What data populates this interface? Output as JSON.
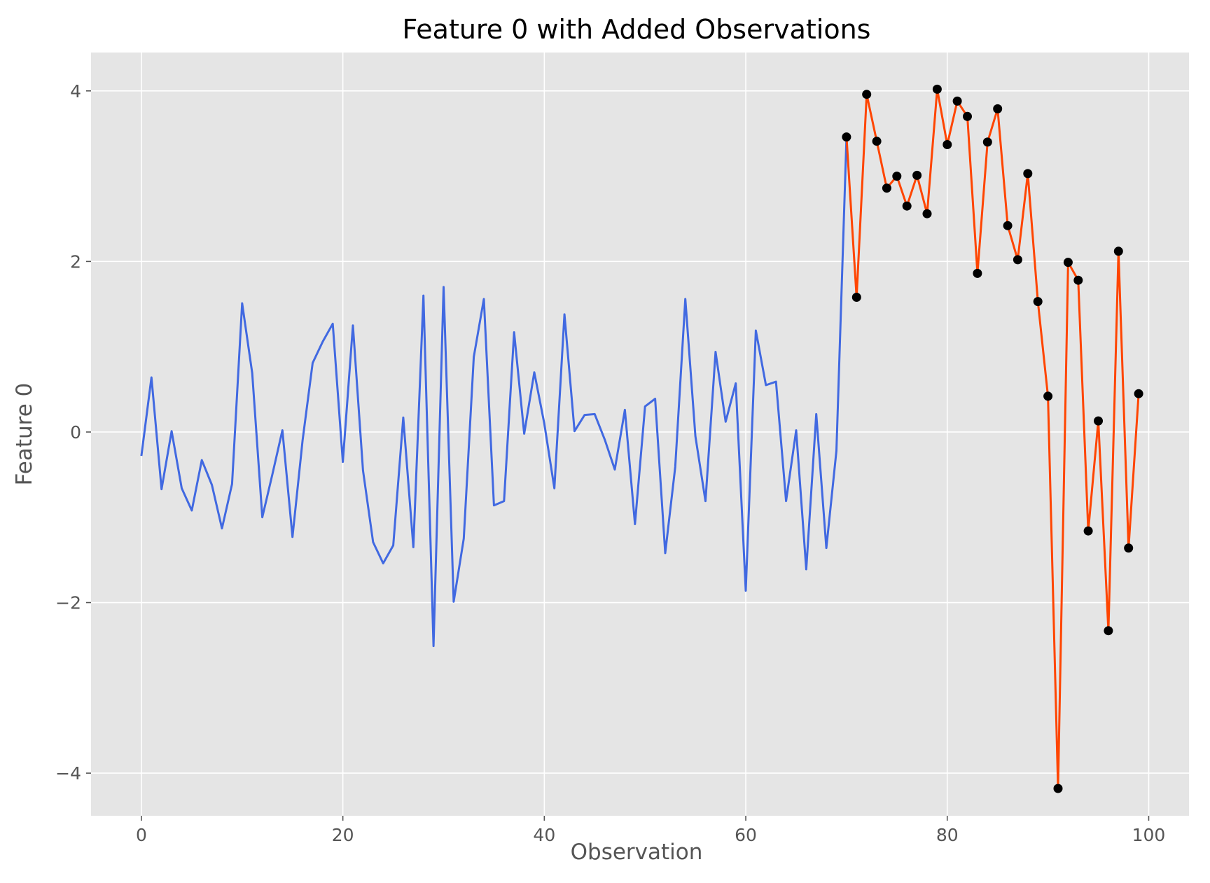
{
  "chart_data": {
    "type": "line",
    "title": "Feature 0 with Added Observations",
    "xlabel": "Observation",
    "ylabel": "Feature 0",
    "xlim": [
      -5,
      104
    ],
    "ylim": [
      -4.5,
      4.45
    ],
    "xticks": [
      0,
      20,
      40,
      60,
      80,
      100
    ],
    "xtick_labels": [
      "0",
      "20",
      "40",
      "60",
      "80",
      "100"
    ],
    "yticks": [
      -4,
      -2,
      0,
      2,
      4
    ],
    "ytick_labels": [
      "−4",
      "−2",
      "0",
      "2",
      "4"
    ],
    "grid": true,
    "style": "ggplot",
    "series": [
      {
        "color": "#4169e1",
        "markers": false,
        "x": [
          0,
          1,
          2,
          3,
          4,
          5,
          6,
          7,
          8,
          9,
          10,
          11,
          12,
          13,
          14,
          15,
          16,
          17,
          18,
          19,
          20,
          21,
          22,
          23,
          24,
          25,
          26,
          27,
          28,
          29,
          30,
          31,
          32,
          33,
          34,
          35,
          36,
          37,
          38,
          39,
          40,
          41,
          42,
          43,
          44,
          45,
          46,
          47,
          48,
          49,
          50,
          51,
          52,
          53,
          54,
          55,
          56,
          57,
          58,
          59,
          60,
          61,
          62,
          63,
          64,
          65,
          66,
          67,
          68,
          69,
          70
        ],
        "values": [
          -0.28,
          0.64,
          -0.67,
          0.01,
          -0.66,
          -0.92,
          -0.33,
          -0.62,
          -1.13,
          -0.61,
          1.51,
          0.69,
          -1.0,
          -0.5,
          0.02,
          -1.23,
          -0.1,
          0.81,
          1.06,
          1.27,
          -0.35,
          1.25,
          -0.45,
          -1.29,
          -1.54,
          -1.33,
          0.17,
          -1.35,
          1.6,
          -2.51,
          1.7,
          -1.99,
          -1.25,
          0.88,
          1.56,
          -0.86,
          -0.81,
          1.17,
          -0.02,
          0.7,
          0.1,
          -0.66,
          1.38,
          0.01,
          0.2,
          0.21,
          -0.09,
          -0.44,
          0.26,
          -1.08,
          0.3,
          0.39,
          -1.42,
          -0.41,
          1.56,
          -0.05,
          -0.81,
          0.94,
          0.12,
          0.57,
          -1.86,
          1.19,
          0.55,
          0.59,
          -0.81,
          0.02,
          -1.61,
          0.21,
          -1.36,
          -0.22,
          3.46
        ]
      },
      {
        "color": "#ff4500",
        "markers": true,
        "marker_color": "#000000",
        "x": [
          70,
          71,
          72,
          73,
          74,
          75,
          76,
          77,
          78,
          79,
          80,
          81,
          82,
          83,
          84,
          85,
          86,
          87,
          88,
          89,
          90,
          91,
          92,
          93,
          94,
          95,
          96,
          97,
          98,
          99
        ],
        "values": [
          3.46,
          1.58,
          3.96,
          3.41,
          2.86,
          3.0,
          2.65,
          3.01,
          2.56,
          4.02,
          3.37,
          3.88,
          3.7,
          1.86,
          3.4,
          3.79,
          2.42,
          2.02,
          3.03,
          1.53,
          0.42,
          -4.18,
          1.99,
          1.78,
          -1.16,
          0.13,
          -2.33,
          2.12,
          -1.36,
          0.45
        ]
      }
    ]
  },
  "colors": {
    "figure_bg": "#ffffff",
    "axes_bg": "#e5e5e5",
    "grid": "#ffffff",
    "text": "#555555"
  }
}
